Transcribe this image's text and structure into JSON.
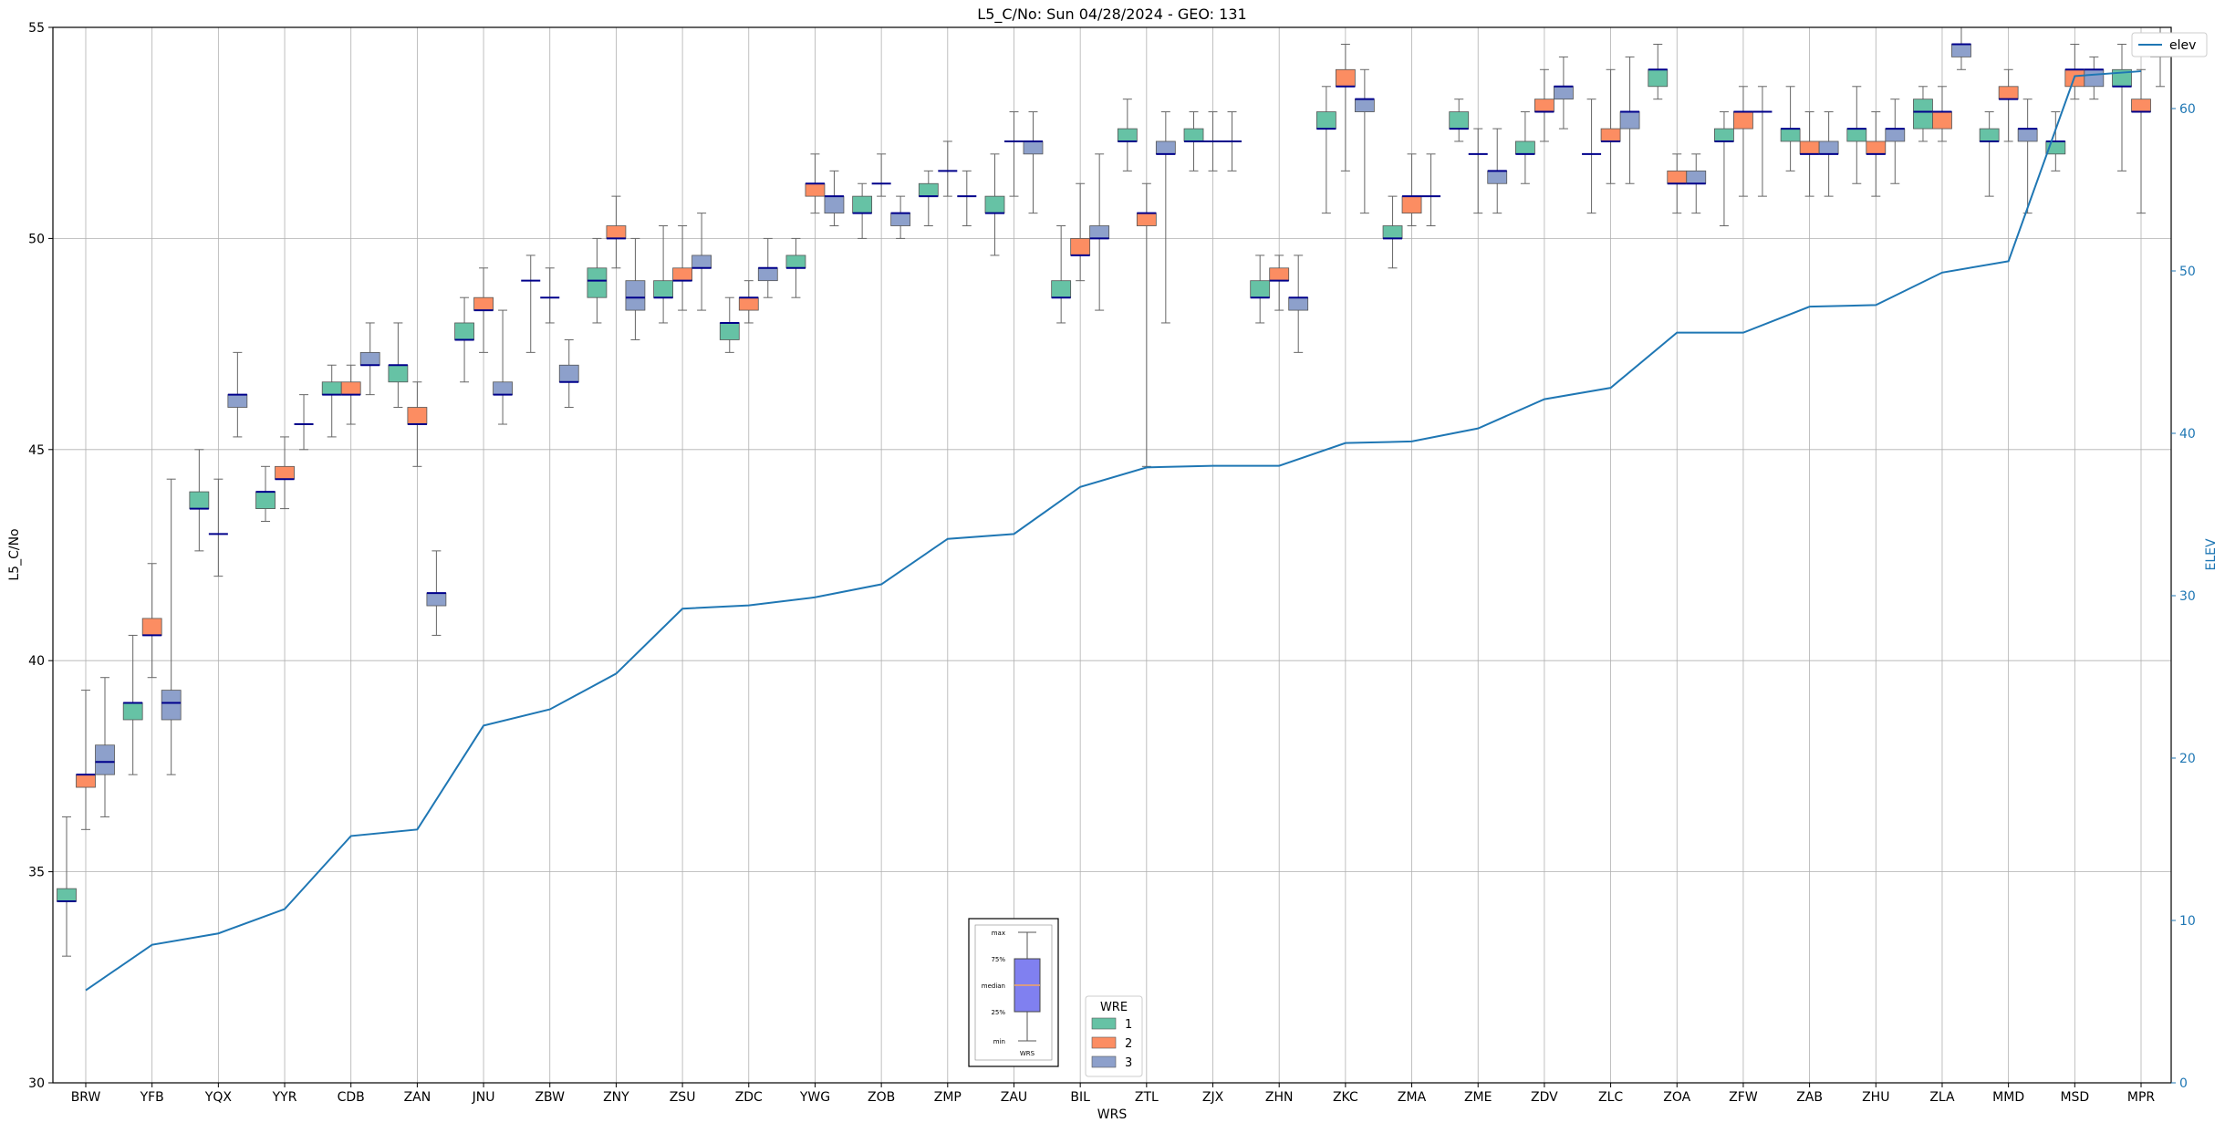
{
  "chart_data": {
    "type": "box",
    "title": "L5_C/No: Sun 04/28/2024 - GEO: 131",
    "xlabel": "WRS",
    "ylabel": "L5_C/No",
    "y2label": "ELEV",
    "ylim": [
      30,
      55
    ],
    "y2lim": [
      0,
      65
    ],
    "yticks": [
      "30",
      "35",
      "40",
      "45",
      "50",
      "55"
    ],
    "y2ticks": [
      "0",
      "10",
      "20",
      "30",
      "40",
      "50",
      "60"
    ],
    "grid": true,
    "categories": [
      "BRW",
      "YFB",
      "YQX",
      "YYR",
      "CDB",
      "ZAN",
      "JNU",
      "ZBW",
      "ZNY",
      "ZSU",
      "ZDC",
      "YWG",
      "ZOB",
      "ZMP",
      "ZAU",
      "BIL",
      "ZTL",
      "ZJX",
      "ZHN",
      "ZKC",
      "ZMA",
      "ZME",
      "ZDV",
      "ZLC",
      "ZOA",
      "ZFW",
      "ZAB",
      "ZHU",
      "ZLA",
      "MMD",
      "MSD",
      "MPR"
    ],
    "legend": {
      "title": "WRE",
      "placement": "bottom-center",
      "entries": [
        {
          "label": "1",
          "color": "#66c2a5"
        },
        {
          "label": "2",
          "color": "#fc8d62"
        },
        {
          "label": "3",
          "color": "#8da0cb"
        }
      ]
    },
    "line_legend": {
      "label": "elev",
      "placement": "top-right",
      "color": "#1f77b4"
    },
    "inset_key": {
      "placement": "bottom-center",
      "labels": [
        "max",
        "75%",
        "median",
        "25%",
        "min"
      ],
      "xlabel": "WRS"
    },
    "series": [
      {
        "name": "1",
        "color": "#66c2a5",
        "boxes": [
          {
            "cat": "BRW",
            "min": 33.0,
            "q1": 34.3,
            "med": 34.3,
            "q3": 34.6,
            "max": 36.3
          },
          {
            "cat": "YFB",
            "min": 37.3,
            "q1": 38.6,
            "med": 39.0,
            "q3": 39.0,
            "max": 40.6
          },
          {
            "cat": "YQX",
            "min": 42.6,
            "q1": 43.6,
            "med": 43.6,
            "q3": 44.0,
            "max": 45.0
          },
          {
            "cat": "YYR",
            "min": 43.3,
            "q1": 43.6,
            "med": 44.0,
            "q3": 44.0,
            "max": 44.6
          },
          {
            "cat": "CDB",
            "min": 45.3,
            "q1": 46.3,
            "med": 46.3,
            "q3": 46.6,
            "max": 47.0
          },
          {
            "cat": "ZAN",
            "min": 46.0,
            "q1": 46.6,
            "med": 47.0,
            "q3": 47.0,
            "max": 48.0
          },
          {
            "cat": "JNU",
            "min": 46.6,
            "q1": 47.6,
            "med": 47.6,
            "q3": 48.0,
            "max": 48.6
          },
          {
            "cat": "ZBW",
            "min": 47.3,
            "q1": 49.0,
            "med": 49.0,
            "q3": 49.0,
            "max": 49.6
          },
          {
            "cat": "ZNY",
            "min": 48.0,
            "q1": 48.6,
            "med": 49.0,
            "q3": 49.3,
            "max": 50.0
          },
          {
            "cat": "ZSU",
            "min": 48.0,
            "q1": 48.6,
            "med": 48.6,
            "q3": 49.0,
            "max": 50.3
          },
          {
            "cat": "ZDC",
            "min": 47.3,
            "q1": 47.6,
            "med": 48.0,
            "q3": 48.0,
            "max": 48.6
          },
          {
            "cat": "YWG",
            "min": 48.6,
            "q1": 49.3,
            "med": 49.3,
            "q3": 49.6,
            "max": 50.0
          },
          {
            "cat": "ZOB",
            "min": 50.0,
            "q1": 50.6,
            "med": 50.6,
            "q3": 51.0,
            "max": 51.3
          },
          {
            "cat": "ZMP",
            "min": 50.3,
            "q1": 51.0,
            "med": 51.0,
            "q3": 51.3,
            "max": 51.6
          },
          {
            "cat": "ZAU",
            "min": 49.6,
            "q1": 50.6,
            "med": 50.6,
            "q3": 51.0,
            "max": 52.0
          },
          {
            "cat": "BIL",
            "min": 48.0,
            "q1": 48.6,
            "med": 48.6,
            "q3": 49.0,
            "max": 50.3
          },
          {
            "cat": "ZTL",
            "min": 51.6,
            "q1": 52.3,
            "med": 52.3,
            "q3": 52.6,
            "max": 53.3
          },
          {
            "cat": "ZJX",
            "min": 51.6,
            "q1": 52.3,
            "med": 52.3,
            "q3": 52.6,
            "max": 53.0
          },
          {
            "cat": "ZHN",
            "min": 48.0,
            "q1": 48.6,
            "med": 48.6,
            "q3": 49.0,
            "max": 49.6
          },
          {
            "cat": "ZKC",
            "min": 50.6,
            "q1": 52.6,
            "med": 52.6,
            "q3": 53.0,
            "max": 53.6
          },
          {
            "cat": "ZMA",
            "min": 49.3,
            "q1": 50.0,
            "med": 50.0,
            "q3": 50.3,
            "max": 51.0
          },
          {
            "cat": "ZME",
            "min": 52.3,
            "q1": 52.6,
            "med": 52.6,
            "q3": 53.0,
            "max": 53.3
          },
          {
            "cat": "ZDV",
            "min": 51.3,
            "q1": 52.0,
            "med": 52.0,
            "q3": 52.3,
            "max": 53.0
          },
          {
            "cat": "ZLC",
            "min": 50.6,
            "q1": 52.0,
            "med": 52.0,
            "q3": 52.0,
            "max": 53.3
          },
          {
            "cat": "ZOA",
            "min": 53.3,
            "q1": 53.6,
            "med": 54.0,
            "q3": 54.0,
            "max": 54.6
          },
          {
            "cat": "ZFW",
            "min": 50.3,
            "q1": 52.3,
            "med": 52.3,
            "q3": 52.6,
            "max": 53.0
          },
          {
            "cat": "ZAB",
            "min": 51.6,
            "q1": 52.3,
            "med": 52.6,
            "q3": 52.6,
            "max": 53.6
          },
          {
            "cat": "ZHU",
            "min": 51.3,
            "q1": 52.3,
            "med": 52.6,
            "q3": 52.6,
            "max": 53.6
          },
          {
            "cat": "ZLA",
            "min": 52.3,
            "q1": 52.6,
            "med": 53.0,
            "q3": 53.3,
            "max": 53.6
          },
          {
            "cat": "MMD",
            "min": 51.0,
            "q1": 52.3,
            "med": 52.3,
            "q3": 52.6,
            "max": 53.0
          },
          {
            "cat": "MSD",
            "min": 51.6,
            "q1": 52.0,
            "med": 52.3,
            "q3": 52.3,
            "max": 53.0
          },
          {
            "cat": "MPR",
            "min": 51.6,
            "q1": 53.6,
            "med": 53.6,
            "q3": 54.0,
            "max": 54.6
          }
        ]
      },
      {
        "name": "2",
        "color": "#fc8d62",
        "boxes": [
          {
            "cat": "BRW",
            "min": 36.0,
            "q1": 37.0,
            "med": 37.3,
            "q3": 37.3,
            "max": 39.3
          },
          {
            "cat": "YFB",
            "min": 39.6,
            "q1": 40.6,
            "med": 40.6,
            "q3": 41.0,
            "max": 42.3
          },
          {
            "cat": "YQX",
            "min": 42.0,
            "q1": 43.0,
            "med": 43.0,
            "q3": 43.0,
            "max": 44.3
          },
          {
            "cat": "YYR",
            "min": 43.6,
            "q1": 44.3,
            "med": 44.3,
            "q3": 44.6,
            "max": 45.3
          },
          {
            "cat": "CDB",
            "min": 45.6,
            "q1": 46.3,
            "med": 46.3,
            "q3": 46.6,
            "max": 47.0
          },
          {
            "cat": "ZAN",
            "min": 44.6,
            "q1": 45.6,
            "med": 45.6,
            "q3": 46.0,
            "max": 46.6
          },
          {
            "cat": "JNU",
            "min": 47.3,
            "q1": 48.3,
            "med": 48.3,
            "q3": 48.6,
            "max": 49.3
          },
          {
            "cat": "ZBW",
            "min": 48.0,
            "q1": 48.6,
            "med": 48.6,
            "q3": 48.6,
            "max": 49.3
          },
          {
            "cat": "ZNY",
            "min": 49.3,
            "q1": 50.0,
            "med": 50.0,
            "q3": 50.3,
            "max": 51.0
          },
          {
            "cat": "ZSU",
            "min": 48.3,
            "q1": 49.0,
            "med": 49.0,
            "q3": 49.3,
            "max": 50.3
          },
          {
            "cat": "ZDC",
            "min": 48.0,
            "q1": 48.3,
            "med": 48.6,
            "q3": 48.6,
            "max": 49.0
          },
          {
            "cat": "YWG",
            "min": 50.6,
            "q1": 51.0,
            "med": 51.3,
            "q3": 51.3,
            "max": 52.0
          },
          {
            "cat": "ZOB",
            "min": 51.0,
            "q1": 51.3,
            "med": 51.3,
            "q3": 51.3,
            "max": 52.0
          },
          {
            "cat": "ZMP",
            "min": 51.0,
            "q1": 51.6,
            "med": 51.6,
            "q3": 51.6,
            "max": 52.3
          },
          {
            "cat": "ZAU",
            "min": 51.0,
            "q1": 52.3,
            "med": 52.3,
            "q3": 52.3,
            "max": 53.0
          },
          {
            "cat": "BIL",
            "min": 49.0,
            "q1": 49.6,
            "med": 49.6,
            "q3": 50.0,
            "max": 51.3
          },
          {
            "cat": "ZTL",
            "min": 44.6,
            "q1": 50.3,
            "med": 50.6,
            "q3": 50.6,
            "max": 51.3
          },
          {
            "cat": "ZJX",
            "min": 51.6,
            "q1": 52.3,
            "med": 52.3,
            "q3": 52.3,
            "max": 53.0
          },
          {
            "cat": "ZHN",
            "min": 48.3,
            "q1": 49.0,
            "med": 49.0,
            "q3": 49.3,
            "max": 49.6
          },
          {
            "cat": "ZKC",
            "min": 51.6,
            "q1": 53.6,
            "med": 53.6,
            "q3": 54.0,
            "max": 54.6
          },
          {
            "cat": "ZMA",
            "min": 50.3,
            "q1": 50.6,
            "med": 51.0,
            "q3": 51.0,
            "max": 52.0
          },
          {
            "cat": "ZME",
            "min": 50.6,
            "q1": 52.0,
            "med": 52.0,
            "q3": 52.0,
            "max": 52.6
          },
          {
            "cat": "ZDV",
            "min": 52.3,
            "q1": 53.0,
            "med": 53.0,
            "q3": 53.3,
            "max": 54.0
          },
          {
            "cat": "ZLC",
            "min": 51.3,
            "q1": 52.3,
            "med": 52.3,
            "q3": 52.6,
            "max": 54.0
          },
          {
            "cat": "ZOA",
            "min": 50.6,
            "q1": 51.3,
            "med": 51.3,
            "q3": 51.6,
            "max": 52.0
          },
          {
            "cat": "ZFW",
            "min": 51.0,
            "q1": 52.6,
            "med": 53.0,
            "q3": 53.0,
            "max": 53.6
          },
          {
            "cat": "ZAB",
            "min": 51.0,
            "q1": 52.0,
            "med": 52.0,
            "q3": 52.3,
            "max": 53.0
          },
          {
            "cat": "ZHU",
            "min": 51.0,
            "q1": 52.0,
            "med": 52.0,
            "q3": 52.3,
            "max": 53.0
          },
          {
            "cat": "ZLA",
            "min": 52.3,
            "q1": 52.6,
            "med": 53.0,
            "q3": 53.0,
            "max": 53.6
          },
          {
            "cat": "MMD",
            "min": 52.3,
            "q1": 53.3,
            "med": 53.3,
            "q3": 53.6,
            "max": 54.0
          },
          {
            "cat": "MSD",
            "min": 53.3,
            "q1": 53.6,
            "med": 54.0,
            "q3": 54.0,
            "max": 54.6
          },
          {
            "cat": "MPR",
            "min": 50.6,
            "q1": 53.0,
            "med": 53.0,
            "q3": 53.3,
            "max": 54.0
          }
        ]
      },
      {
        "name": "3",
        "color": "#8da0cb",
        "boxes": [
          {
            "cat": "BRW",
            "min": 36.3,
            "q1": 37.3,
            "med": 37.6,
            "q3": 38.0,
            "max": 39.6
          },
          {
            "cat": "YFB",
            "min": 37.3,
            "q1": 38.6,
            "med": 39.0,
            "q3": 39.3,
            "max": 44.3
          },
          {
            "cat": "YQX",
            "min": 45.3,
            "q1": 46.0,
            "med": 46.3,
            "q3": 46.3,
            "max": 47.3
          },
          {
            "cat": "YYR",
            "min": 45.0,
            "q1": 45.6,
            "med": 45.6,
            "q3": 45.6,
            "max": 46.3
          },
          {
            "cat": "CDB",
            "min": 46.3,
            "q1": 47.0,
            "med": 47.0,
            "q3": 47.3,
            "max": 48.0
          },
          {
            "cat": "ZAN",
            "min": 40.6,
            "q1": 41.3,
            "med": 41.6,
            "q3": 41.6,
            "max": 42.6
          },
          {
            "cat": "JNU",
            "min": 45.6,
            "q1": 46.3,
            "med": 46.3,
            "q3": 46.6,
            "max": 48.3
          },
          {
            "cat": "ZBW",
            "min": 46.0,
            "q1": 46.6,
            "med": 46.6,
            "q3": 47.0,
            "max": 47.6
          },
          {
            "cat": "ZNY",
            "min": 47.6,
            "q1": 48.3,
            "med": 48.6,
            "q3": 49.0,
            "max": 50.0
          },
          {
            "cat": "ZSU",
            "min": 48.3,
            "q1": 49.3,
            "med": 49.3,
            "q3": 49.6,
            "max": 50.6
          },
          {
            "cat": "ZDC",
            "min": 48.6,
            "q1": 49.0,
            "med": 49.3,
            "q3": 49.3,
            "max": 50.0
          },
          {
            "cat": "YWG",
            "min": 50.3,
            "q1": 50.6,
            "med": 51.0,
            "q3": 51.0,
            "max": 51.6
          },
          {
            "cat": "ZOB",
            "min": 50.0,
            "q1": 50.3,
            "med": 50.6,
            "q3": 50.6,
            "max": 51.0
          },
          {
            "cat": "ZMP",
            "min": 50.3,
            "q1": 51.0,
            "med": 51.0,
            "q3": 51.0,
            "max": 51.6
          },
          {
            "cat": "ZAU",
            "min": 50.6,
            "q1": 52.0,
            "med": 52.3,
            "q3": 52.3,
            "max": 53.0
          },
          {
            "cat": "BIL",
            "min": 48.3,
            "q1": 50.0,
            "med": 50.0,
            "q3": 50.3,
            "max": 52.0
          },
          {
            "cat": "ZTL",
            "min": 48.0,
            "q1": 52.0,
            "med": 52.0,
            "q3": 52.3,
            "max": 53.0
          },
          {
            "cat": "ZJX",
            "min": 51.6,
            "q1": 52.3,
            "med": 52.3,
            "q3": 52.3,
            "max": 53.0
          },
          {
            "cat": "ZHN",
            "min": 47.3,
            "q1": 48.3,
            "med": 48.6,
            "q3": 48.6,
            "max": 49.6
          },
          {
            "cat": "ZKC",
            "min": 50.6,
            "q1": 53.0,
            "med": 53.3,
            "q3": 53.3,
            "max": 54.0
          },
          {
            "cat": "ZMA",
            "min": 50.3,
            "q1": 51.0,
            "med": 51.0,
            "q3": 51.0,
            "max": 52.0
          },
          {
            "cat": "ZME",
            "min": 50.6,
            "q1": 51.3,
            "med": 51.6,
            "q3": 51.6,
            "max": 52.6
          },
          {
            "cat": "ZDV",
            "min": 52.6,
            "q1": 53.3,
            "med": 53.6,
            "q3": 53.6,
            "max": 54.3
          },
          {
            "cat": "ZLC",
            "min": 51.3,
            "q1": 52.6,
            "med": 53.0,
            "q3": 53.0,
            "max": 54.3
          },
          {
            "cat": "ZOA",
            "min": 50.6,
            "q1": 51.3,
            "med": 51.3,
            "q3": 51.6,
            "max": 52.0
          },
          {
            "cat": "ZFW",
            "min": 51.0,
            "q1": 53.0,
            "med": 53.0,
            "q3": 53.0,
            "max": 53.6
          },
          {
            "cat": "ZAB",
            "min": 51.0,
            "q1": 52.0,
            "med": 52.0,
            "q3": 52.3,
            "max": 53.0
          },
          {
            "cat": "ZHU",
            "min": 51.3,
            "q1": 52.3,
            "med": 52.6,
            "q3": 52.6,
            "max": 53.3
          },
          {
            "cat": "ZLA",
            "min": 54.0,
            "q1": 54.3,
            "med": 54.6,
            "q3": 54.6,
            "max": 55.0
          },
          {
            "cat": "MMD",
            "min": 50.6,
            "q1": 52.3,
            "med": 52.6,
            "q3": 52.6,
            "max": 53.3
          },
          {
            "cat": "MSD",
            "min": 53.3,
            "q1": 53.6,
            "med": 54.0,
            "q3": 54.0,
            "max": 54.3
          },
          {
            "cat": "MPR",
            "min": 53.6,
            "q1": 54.3,
            "med": 54.6,
            "q3": 54.6,
            "max": 55.0
          }
        ]
      },
      {
        "name": "elev",
        "type": "line",
        "axis": "right",
        "color": "#1f77b4",
        "values": [
          5.7,
          8.5,
          9.2,
          10.7,
          15.2,
          15.6,
          22.0,
          23.0,
          25.2,
          29.2,
          29.4,
          29.9,
          30.7,
          33.5,
          33.8,
          36.7,
          37.9,
          38.0,
          38.0,
          39.4,
          39.5,
          40.3,
          42.1,
          42.8,
          46.2,
          46.2,
          47.8,
          47.9,
          49.9,
          50.6,
          62.0,
          62.3
        ]
      }
    ]
  }
}
